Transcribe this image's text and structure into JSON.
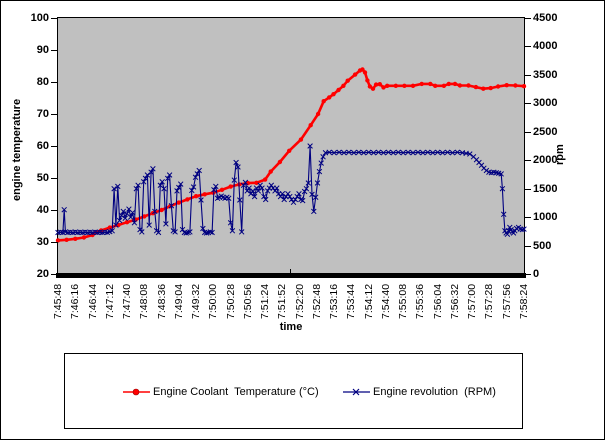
{
  "colors": {
    "plot_background": "#C0C0C0",
    "temperature_series": "#FF0000",
    "rpm_series": "#000080",
    "axis": "#000000",
    "page_background": "#FFFFFF"
  },
  "axis_titles": {
    "x": "time",
    "y_left": "engine temperature",
    "y_right": "rpm"
  },
  "legend": {
    "entries": [
      {
        "label": "Engine Coolant  Temperature (°C)",
        "color": "#FF0000",
        "marker": "circle"
      },
      {
        "label": "Engine revolution  (RPM)",
        "color": "#000080",
        "marker": "x"
      }
    ]
  },
  "chart_data": {
    "type": "line",
    "title": "",
    "xlabel": "time",
    "ylabel_left": "engine temperature",
    "ylabel_right": "rpm",
    "plot_bg": "#C0C0C0",
    "grid": false,
    "legend_position": "bottom-box",
    "x_seconds_range": [
      0,
      756
    ],
    "x_tick_labels": [
      "7:45:48",
      "7:46:16",
      "7:46:44",
      "7:47:12",
      "7:47:40",
      "7:48:08",
      "7:48:36",
      "7:49:04",
      "7:49:32",
      "7:50:00",
      "7:50:28",
      "7:50:56",
      "7:51:24",
      "7:51:52",
      "7:52:20",
      "7:52:48",
      "7:53:16",
      "7:53:44",
      "7:54:12",
      "7:54:40",
      "7:55:08",
      "7:55:36",
      "7:56:04",
      "7:56:32",
      "7:57:00",
      "7:57:28",
      "7:57:56",
      "7:58:24"
    ],
    "left_axis": {
      "min": 20,
      "max": 100,
      "ticks": [
        20,
        30,
        40,
        50,
        60,
        70,
        80,
        90,
        100
      ]
    },
    "right_axis": {
      "min": 0,
      "max": 4500,
      "ticks": [
        0,
        500,
        1000,
        1500,
        2000,
        2500,
        3000,
        3500,
        4000,
        4500
      ]
    },
    "series": [
      {
        "name": "Engine Coolant  Temperature (°C)",
        "axis": "left",
        "color": "#FF0000",
        "marker": "circle",
        "points": [
          [
            0,
            30.5
          ],
          [
            14,
            30.7
          ],
          [
            28,
            31
          ],
          [
            42,
            31.4
          ],
          [
            56,
            32.2
          ],
          [
            62,
            33
          ],
          [
            70,
            33.6
          ],
          [
            84,
            34.5
          ],
          [
            98,
            35.3
          ],
          [
            112,
            36.2
          ],
          [
            126,
            37
          ],
          [
            140,
            38
          ],
          [
            154,
            39
          ],
          [
            168,
            40
          ],
          [
            182,
            41.2
          ],
          [
            196,
            42.3
          ],
          [
            210,
            43.3
          ],
          [
            224,
            44.3
          ],
          [
            238,
            44.9
          ],
          [
            252,
            45.4
          ],
          [
            266,
            46.3
          ],
          [
            280,
            47.3
          ],
          [
            294,
            48
          ],
          [
            308,
            48.4
          ],
          [
            322,
            48.5
          ],
          [
            336,
            49.5
          ],
          [
            345,
            52
          ],
          [
            360,
            55
          ],
          [
            375,
            58.5
          ],
          [
            394,
            62
          ],
          [
            410,
            66.5
          ],
          [
            422,
            70
          ],
          [
            431,
            74
          ],
          [
            440,
            75.2
          ],
          [
            447,
            76.2
          ],
          [
            455,
            77.5
          ],
          [
            463,
            78.8
          ],
          [
            470,
            80.4
          ],
          [
            482,
            82.3
          ],
          [
            490,
            83.6
          ],
          [
            494,
            83.9
          ],
          [
            498,
            83
          ],
          [
            502,
            80.5
          ],
          [
            506,
            78.6
          ],
          [
            511,
            77.9
          ],
          [
            516,
            79.2
          ],
          [
            522,
            79.3
          ],
          [
            528,
            78.3
          ],
          [
            534,
            78.8
          ],
          [
            548,
            78.8
          ],
          [
            562,
            78.8
          ],
          [
            576,
            78.8
          ],
          [
            590,
            79.4
          ],
          [
            604,
            79.4
          ],
          [
            612,
            78.8
          ],
          [
            626,
            78.8
          ],
          [
            634,
            79.4
          ],
          [
            644,
            79.4
          ],
          [
            652,
            78.9
          ],
          [
            666,
            78.9
          ],
          [
            678,
            78.4
          ],
          [
            690,
            77.9
          ],
          [
            702,
            78.1
          ],
          [
            714,
            78.6
          ],
          [
            728,
            79
          ],
          [
            742,
            78.9
          ],
          [
            756,
            78.7
          ]
        ]
      },
      {
        "name": "Engine revolution  (RPM)",
        "axis": "right",
        "color": "#000080",
        "marker": "x",
        "points": [
          [
            0,
            730
          ],
          [
            4,
            735
          ],
          [
            8,
            730
          ],
          [
            10,
            1130
          ],
          [
            12,
            740
          ],
          [
            16,
            730
          ],
          [
            20,
            735
          ],
          [
            24,
            730
          ],
          [
            28,
            738
          ],
          [
            32,
            730
          ],
          [
            36,
            735
          ],
          [
            40,
            730
          ],
          [
            44,
            736
          ],
          [
            48,
            730
          ],
          [
            52,
            734
          ],
          [
            56,
            730
          ],
          [
            60,
            737
          ],
          [
            64,
            730
          ],
          [
            68,
            734
          ],
          [
            72,
            730
          ],
          [
            76,
            736
          ],
          [
            80,
            732
          ],
          [
            84,
            745
          ],
          [
            88,
            760
          ],
          [
            91,
            1500
          ],
          [
            94,
            860
          ],
          [
            97,
            1540
          ],
          [
            100,
            940
          ],
          [
            103,
            1030
          ],
          [
            106,
            1100
          ],
          [
            109,
            980
          ],
          [
            112,
            1060
          ],
          [
            115,
            1140
          ],
          [
            118,
            1000
          ],
          [
            121,
            1080
          ],
          [
            124,
            900
          ],
          [
            127,
            1500
          ],
          [
            130,
            1560
          ],
          [
            133,
            780
          ],
          [
            136,
            740
          ],
          [
            139,
            1620
          ],
          [
            142,
            1680
          ],
          [
            145,
            1740
          ],
          [
            148,
            860
          ],
          [
            151,
            1790
          ],
          [
            154,
            1850
          ],
          [
            157,
            1100
          ],
          [
            160,
            760
          ],
          [
            163,
            730
          ],
          [
            166,
            1560
          ],
          [
            169,
            1620
          ],
          [
            172,
            1500
          ],
          [
            175,
            880
          ],
          [
            178,
            1680
          ],
          [
            181,
            1740
          ],
          [
            184,
            1200
          ],
          [
            187,
            760
          ],
          [
            190,
            740
          ],
          [
            193,
            1460
          ],
          [
            196,
            1520
          ],
          [
            199,
            1580
          ],
          [
            202,
            780
          ],
          [
            205,
            730
          ],
          [
            208,
            720
          ],
          [
            211,
            730
          ],
          [
            214,
            740
          ],
          [
            217,
            1470
          ],
          [
            220,
            1530
          ],
          [
            223,
            1700
          ],
          [
            226,
            1760
          ],
          [
            229,
            1820
          ],
          [
            232,
            1300
          ],
          [
            235,
            800
          ],
          [
            238,
            730
          ],
          [
            241,
            720
          ],
          [
            244,
            730
          ],
          [
            247,
            740
          ],
          [
            250,
            730
          ],
          [
            253,
            1480
          ],
          [
            256,
            1540
          ],
          [
            259,
            1330
          ],
          [
            262,
            1350
          ],
          [
            265,
            1370
          ],
          [
            268,
            1350
          ],
          [
            271,
            1330
          ],
          [
            274,
            1350
          ],
          [
            277,
            1330
          ],
          [
            280,
            900
          ],
          [
            283,
            760
          ],
          [
            286,
            1650
          ],
          [
            289,
            1960
          ],
          [
            292,
            1880
          ],
          [
            295,
            1300
          ],
          [
            298,
            740
          ],
          [
            301,
            1560
          ],
          [
            304,
            1610
          ],
          [
            307,
            1460
          ],
          [
            310,
            1510
          ],
          [
            313,
            1410
          ],
          [
            316,
            1460
          ],
          [
            319,
            1360
          ],
          [
            322,
            1510
          ],
          [
            325,
            1460
          ],
          [
            328,
            1560
          ],
          [
            331,
            1510
          ],
          [
            334,
            1360
          ],
          [
            337,
            1310
          ],
          [
            340,
            1460
          ],
          [
            343,
            1510
          ],
          [
            346,
            1560
          ],
          [
            349,
            1510
          ],
          [
            352,
            1460
          ],
          [
            355,
            1510
          ],
          [
            358,
            1410
          ],
          [
            361,
            1360
          ],
          [
            364,
            1410
          ],
          [
            367,
            1310
          ],
          [
            370,
            1360
          ],
          [
            373,
            1410
          ],
          [
            376,
            1360
          ],
          [
            379,
            1310
          ],
          [
            382,
            1260
          ],
          [
            385,
            1310
          ],
          [
            388,
            1360
          ],
          [
            391,
            1410
          ],
          [
            394,
            1310
          ],
          [
            397,
            1290
          ],
          [
            400,
            1450
          ],
          [
            403,
            1500
          ],
          [
            406,
            1600
          ],
          [
            409,
            2250
          ],
          [
            412,
            1400
          ],
          [
            415,
            1100
          ],
          [
            418,
            1350
          ],
          [
            421,
            1600
          ],
          [
            424,
            1800
          ],
          [
            427,
            1950
          ],
          [
            430,
            2060
          ],
          [
            434,
            2130
          ],
          [
            440,
            2140
          ],
          [
            448,
            2130
          ],
          [
            456,
            2140
          ],
          [
            464,
            2130
          ],
          [
            472,
            2140
          ],
          [
            480,
            2130
          ],
          [
            488,
            2140
          ],
          [
            496,
            2130
          ],
          [
            504,
            2140
          ],
          [
            512,
            2130
          ],
          [
            520,
            2140
          ],
          [
            528,
            2130
          ],
          [
            536,
            2140
          ],
          [
            544,
            2130
          ],
          [
            552,
            2140
          ],
          [
            560,
            2130
          ],
          [
            568,
            2140
          ],
          [
            576,
            2130
          ],
          [
            584,
            2140
          ],
          [
            592,
            2130
          ],
          [
            600,
            2140
          ],
          [
            608,
            2130
          ],
          [
            616,
            2140
          ],
          [
            624,
            2130
          ],
          [
            632,
            2140
          ],
          [
            640,
            2130
          ],
          [
            648,
            2140
          ],
          [
            656,
            2130
          ],
          [
            662,
            2120
          ],
          [
            668,
            2110
          ],
          [
            674,
            2060
          ],
          [
            679,
            2010
          ],
          [
            683,
            1960
          ],
          [
            687,
            1910
          ],
          [
            691,
            1860
          ],
          [
            695,
            1820
          ],
          [
            699,
            1790
          ],
          [
            703,
            1780
          ],
          [
            707,
            1790
          ],
          [
            711,
            1780
          ],
          [
            715,
            1770
          ],
          [
            719,
            1760
          ],
          [
            721,
            1500
          ],
          [
            723,
            1050
          ],
          [
            725,
            760
          ],
          [
            727,
            720
          ],
          [
            729,
            700
          ],
          [
            731,
            760
          ],
          [
            733,
            820
          ],
          [
            735,
            780
          ],
          [
            737,
            740
          ],
          [
            739,
            720
          ],
          [
            741,
            760
          ],
          [
            744,
            800
          ],
          [
            747,
            820
          ],
          [
            750,
            790
          ],
          [
            753,
            780
          ],
          [
            756,
            790
          ]
        ]
      }
    ]
  }
}
